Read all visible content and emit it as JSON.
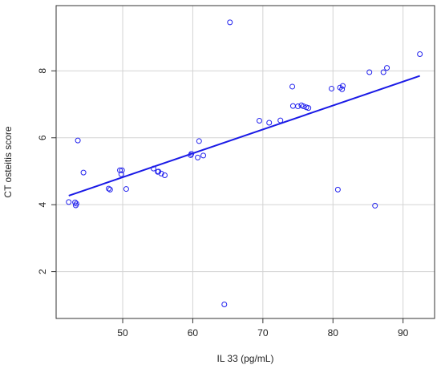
{
  "chart_data": {
    "type": "scatter",
    "xlabel": "IL 33 (pg/mL)",
    "ylabel": "CT osteitis score",
    "xlim": [
      40.5,
      94.5
    ],
    "ylim": [
      0.6,
      9.95
    ],
    "x_ticks": [
      50,
      60,
      70,
      80,
      90
    ],
    "y_ticks": [
      2,
      4,
      6,
      8
    ],
    "x_tick_labels": [
      "50",
      "60",
      "70",
      "80",
      "90"
    ],
    "y_tick_labels": [
      "2",
      "4",
      "6",
      "8"
    ],
    "grid": true,
    "series": [
      {
        "marker": "open-circle",
        "x": [
          42.3,
          43.2,
          43.3,
          43.6,
          43.4,
          44.4,
          48.0,
          48.2,
          49.6,
          49.8,
          49.9,
          50.5,
          54.4,
          55.0,
          55.1,
          55.5,
          56.0,
          59.7,
          59.8,
          60.7,
          60.9,
          61.5,
          64.5,
          65.3,
          69.5,
          70.9,
          72.5,
          74.2,
          74.3,
          75.0,
          75.5,
          75.8,
          76.2,
          76.5,
          79.8,
          80.7,
          81.0,
          81.3,
          81.4,
          85.2,
          86.0,
          87.2,
          87.7,
          92.4
        ],
        "y": [
          4.08,
          4.07,
          3.98,
          5.92,
          4.03,
          4.96,
          4.48,
          4.45,
          5.03,
          4.91,
          5.03,
          4.47,
          5.08,
          4.98,
          4.99,
          4.93,
          4.88,
          5.48,
          5.52,
          5.41,
          5.9,
          5.47,
          1.02,
          9.45,
          6.51,
          6.45,
          6.52,
          7.53,
          6.95,
          6.94,
          6.97,
          6.94,
          6.91,
          6.89,
          7.47,
          4.45,
          7.5,
          7.45,
          7.55,
          7.96,
          3.97,
          7.96,
          8.09,
          8.5
        ]
      }
    ],
    "regression_line": {
      "x": [
        42.3,
        92.4
      ],
      "y": [
        4.27,
        7.85
      ]
    },
    "colors": {
      "points": "#2222ee",
      "line": "#1a1ae6",
      "grid": "#d3d3d3",
      "axis": "#333333"
    }
  }
}
